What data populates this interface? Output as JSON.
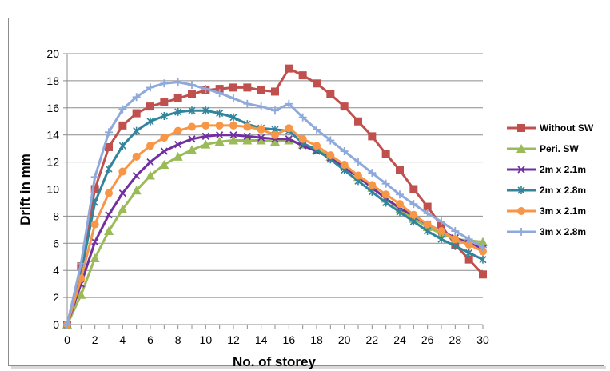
{
  "chart_data": {
    "type": "line",
    "title": "",
    "xlabel": "No. of storey",
    "ylabel": "Drift in mm",
    "xlim": [
      0,
      30
    ],
    "ylim": [
      0,
      20
    ],
    "x_ticks": [
      0,
      2,
      4,
      6,
      8,
      10,
      12,
      14,
      16,
      18,
      20,
      22,
      24,
      26,
      28,
      30
    ],
    "y_ticks": [
      0,
      2,
      4,
      6,
      8,
      10,
      12,
      14,
      16,
      18,
      20
    ],
    "grid": "horizontal",
    "legend_position": "right",
    "x": [
      0,
      1,
      2,
      3,
      4,
      5,
      6,
      7,
      8,
      9,
      10,
      11,
      12,
      13,
      14,
      15,
      16,
      17,
      18,
      19,
      20,
      21,
      22,
      23,
      24,
      25,
      26,
      27,
      28,
      29,
      30
    ],
    "series": [
      {
        "name": "Without SW",
        "color": "#c0504d",
        "marker": "square",
        "values": [
          0,
          4.3,
          10.0,
          13.1,
          14.7,
          15.6,
          16.1,
          16.4,
          16.7,
          17.0,
          17.3,
          17.4,
          17.5,
          17.5,
          17.3,
          17.2,
          18.9,
          18.4,
          17.8,
          17.0,
          16.1,
          15.0,
          13.9,
          12.6,
          11.4,
          10.0,
          8.7,
          7.3,
          5.9,
          4.8,
          3.7
        ]
      },
      {
        "name": "Peri. SW",
        "color": "#9bbb59",
        "marker": "triangle",
        "values": [
          0,
          2.2,
          4.9,
          6.9,
          8.5,
          9.9,
          11.0,
          11.8,
          12.4,
          12.9,
          13.3,
          13.5,
          13.6,
          13.6,
          13.6,
          13.5,
          13.6,
          13.3,
          12.9,
          12.4,
          11.7,
          10.9,
          10.1,
          9.3,
          8.5,
          7.8,
          7.2,
          6.7,
          6.3,
          6.2,
          6.1
        ]
      },
      {
        "name": "2m x 2.1m",
        "color": "#7030a0",
        "marker": "x",
        "values": [
          0,
          3.0,
          6.1,
          8.1,
          9.7,
          11.0,
          12.0,
          12.8,
          13.3,
          13.7,
          13.9,
          14.0,
          14.0,
          13.9,
          13.8,
          13.7,
          13.7,
          13.2,
          12.8,
          12.3,
          11.6,
          10.9,
          10.1,
          9.3,
          8.6,
          8.0,
          7.4,
          6.9,
          6.4,
          6.0,
          5.6
        ]
      },
      {
        "name": "2m x 2.8m",
        "color": "#31849b",
        "marker": "asterisk",
        "values": [
          0,
          3.8,
          9.0,
          11.5,
          13.2,
          14.3,
          15.0,
          15.4,
          15.7,
          15.8,
          15.8,
          15.6,
          15.3,
          14.8,
          14.5,
          14.4,
          14.3,
          13.4,
          12.9,
          12.2,
          11.4,
          10.6,
          9.8,
          9.0,
          8.3,
          7.6,
          6.9,
          6.3,
          5.8,
          5.3,
          4.8
        ]
      },
      {
        "name": "3m x 2.1m",
        "color": "#f79646",
        "marker": "circle",
        "values": [
          0,
          3.4,
          7.4,
          9.7,
          11.3,
          12.4,
          13.2,
          13.8,
          14.3,
          14.6,
          14.7,
          14.7,
          14.7,
          14.6,
          14.4,
          14.0,
          14.5,
          13.7,
          13.2,
          12.5,
          11.8,
          11.0,
          10.3,
          9.6,
          8.9,
          8.1,
          7.4,
          6.9,
          6.3,
          5.9,
          5.4
        ]
      },
      {
        "name": "3m x 2.8m",
        "color": "#8ea9db",
        "marker": "plus",
        "values": [
          0,
          4.5,
          10.9,
          14.2,
          15.9,
          16.8,
          17.5,
          17.8,
          17.9,
          17.7,
          17.4,
          17.1,
          16.7,
          16.3,
          16.1,
          15.8,
          16.3,
          15.3,
          14.4,
          13.6,
          12.8,
          12.0,
          11.2,
          10.4,
          9.6,
          8.9,
          8.2,
          7.6,
          6.9,
          6.3,
          5.7
        ]
      }
    ]
  }
}
